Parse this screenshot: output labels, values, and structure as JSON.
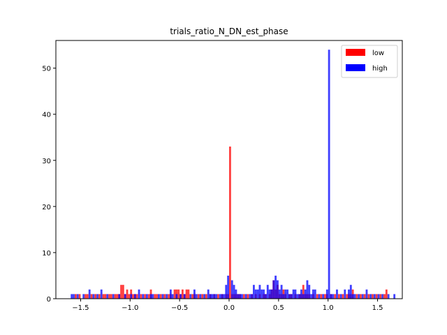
{
  "chart_data": {
    "type": "histogram",
    "title": "trials_ratio_N_DN_est_phase",
    "xlabel": "",
    "ylabel": "",
    "xlim": [
      -1.75,
      1.75
    ],
    "ylim": [
      0,
      56
    ],
    "xticks": [
      -1.5,
      -1.0,
      -0.5,
      0.0,
      0.5,
      1.0,
      1.5
    ],
    "xtick_labels": [
      "−1.5",
      "−1.0",
      "−0.5",
      "0.0",
      "0.5",
      "1.0",
      "1.5"
    ],
    "yticks": [
      0,
      10,
      20,
      30,
      40,
      50
    ],
    "ytick_labels": [
      "0",
      "10",
      "20",
      "30",
      "40",
      "50"
    ],
    "grid": false,
    "legend_position": "top-right",
    "bin_width": 0.02,
    "series": [
      {
        "name": "low",
        "color": "#ff0000",
        "opacity": 0.75,
        "x": [
          -1.56,
          -1.52,
          -1.46,
          -1.44,
          -1.4,
          -1.36,
          -1.32,
          -1.28,
          -1.26,
          -1.22,
          -1.2,
          -1.16,
          -1.14,
          -1.12,
          -1.1,
          -1.08,
          -1.06,
          -1.04,
          -1.02,
          -1.0,
          -0.98,
          -0.96,
          -0.94,
          -0.9,
          -0.86,
          -0.82,
          -0.8,
          -0.76,
          -0.74,
          -0.7,
          -0.66,
          -0.62,
          -0.6,
          -0.56,
          -0.54,
          -0.52,
          -0.5,
          -0.48,
          -0.46,
          -0.44,
          -0.42,
          -0.38,
          -0.36,
          -0.32,
          -0.28,
          -0.24,
          -0.2,
          -0.16,
          -0.12,
          -0.08,
          -0.04,
          -0.02,
          0.0,
          0.02,
          0.04,
          0.06,
          0.08,
          0.1,
          0.14,
          0.18,
          0.22,
          0.26,
          0.3,
          0.34,
          0.36,
          0.4,
          0.42,
          0.44,
          0.46,
          0.48,
          0.5,
          0.52,
          0.54,
          0.56,
          0.6,
          0.62,
          0.66,
          0.7,
          0.72,
          0.74,
          0.76,
          0.78,
          0.8,
          0.84,
          0.88,
          0.92,
          0.96,
          0.98,
          1.02,
          1.06,
          1.1,
          1.14,
          1.18,
          1.2,
          1.22,
          1.24,
          1.28,
          1.32,
          1.36,
          1.4,
          1.44,
          1.48,
          1.52,
          1.56,
          1.58
        ],
        "y": [
          1,
          1,
          1,
          1,
          1,
          1,
          1,
          1,
          1,
          1,
          1,
          1,
          1,
          1,
          3,
          3,
          1,
          2,
          1,
          2,
          1,
          1,
          1,
          1,
          1,
          1,
          2,
          1,
          1,
          1,
          1,
          1,
          1,
          2,
          2,
          2,
          1,
          2,
          1,
          2,
          2,
          1,
          1,
          1,
          1,
          1,
          1,
          1,
          1,
          1,
          1,
          1,
          33,
          1,
          1,
          1,
          1,
          1,
          1,
          1,
          1,
          1,
          1,
          1,
          1,
          1,
          2,
          4,
          2,
          3,
          1,
          1,
          2,
          1,
          1,
          1,
          1,
          1,
          1,
          3,
          1,
          1,
          1,
          1,
          1,
          1,
          1,
          1,
          1,
          1,
          1,
          1,
          1,
          1,
          1,
          2,
          1,
          1,
          1,
          1,
          1,
          1,
          1,
          1,
          2
        ]
      },
      {
        "name": "high",
        "color": "#0000ff",
        "opacity": 0.75,
        "x": [
          -1.6,
          -1.58,
          -1.54,
          -1.48,
          -1.42,
          -1.38,
          -1.34,
          -1.3,
          -1.24,
          -1.18,
          -1.12,
          -1.06,
          -1.0,
          -0.96,
          -0.92,
          -0.88,
          -0.84,
          -0.8,
          -0.78,
          -0.72,
          -0.68,
          -0.64,
          -0.6,
          -0.58,
          -0.54,
          -0.5,
          -0.46,
          -0.4,
          -0.36,
          -0.34,
          -0.3,
          -0.26,
          -0.22,
          -0.2,
          -0.18,
          -0.16,
          -0.14,
          -0.1,
          -0.08,
          -0.06,
          -0.04,
          -0.02,
          0.02,
          0.04,
          0.06,
          0.08,
          0.1,
          0.12,
          0.16,
          0.2,
          0.22,
          0.24,
          0.26,
          0.28,
          0.3,
          0.32,
          0.34,
          0.36,
          0.38,
          0.4,
          0.42,
          0.44,
          0.46,
          0.48,
          0.5,
          0.52,
          0.54,
          0.56,
          0.58,
          0.6,
          0.62,
          0.64,
          0.66,
          0.68,
          0.7,
          0.72,
          0.74,
          0.76,
          0.78,
          0.8,
          0.82,
          0.84,
          0.86,
          0.9,
          0.94,
          0.98,
          1.0,
          1.02,
          1.04,
          1.08,
          1.12,
          1.16,
          1.2,
          1.22,
          1.24,
          1.26,
          1.3,
          1.34,
          1.38,
          1.42,
          1.46,
          1.5,
          1.54,
          1.6,
          1.66
        ],
        "y": [
          1,
          1,
          1,
          1,
          2,
          1,
          1,
          2,
          1,
          1,
          1,
          1,
          1,
          1,
          2,
          1,
          1,
          1,
          1,
          1,
          1,
          1,
          2,
          1,
          1,
          1,
          1,
          1,
          2,
          1,
          1,
          1,
          2,
          1,
          1,
          1,
          1,
          1,
          1,
          1,
          3,
          5,
          4,
          3,
          2,
          1,
          1,
          1,
          1,
          1,
          1,
          3,
          2,
          2,
          3,
          2,
          2,
          1,
          3,
          2,
          2,
          4,
          5,
          4,
          2,
          3,
          1,
          2,
          2,
          1,
          1,
          2,
          2,
          1,
          1,
          2,
          1,
          2,
          4,
          3,
          1,
          2,
          2,
          1,
          1,
          2,
          54,
          1,
          1,
          2,
          1,
          2,
          2,
          3,
          1,
          1,
          1,
          1,
          2,
          1,
          1,
          1,
          1,
          1,
          1
        ]
      }
    ]
  }
}
